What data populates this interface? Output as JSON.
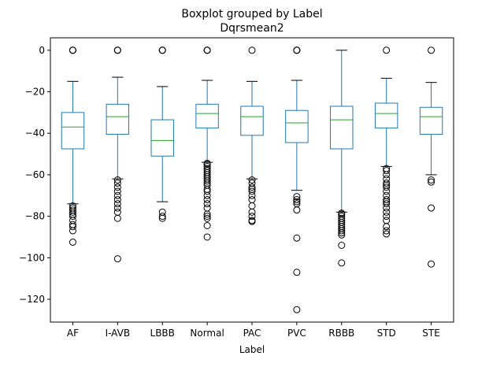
{
  "chart_data": {
    "type": "boxplot",
    "title": "Boxplot grouped by Label",
    "subtitle": "Dqrsmean2",
    "xlabel": "Label",
    "ylabel": "",
    "ylim": [
      -131,
      6
    ],
    "yticks": [
      0,
      -20,
      -40,
      -60,
      -80,
      -100,
      -120
    ],
    "grid": false,
    "colors": {
      "box": "#1f77b4",
      "median": "#2ca02c",
      "whisker": "#000000",
      "flier": "#000000"
    },
    "categories": [
      "AF",
      "I-AVB",
      "LBBB",
      "Normal",
      "PAC",
      "PVC",
      "RBBB",
      "STD",
      "STE"
    ],
    "boxes": [
      {
        "label": "AF",
        "whislo": -74,
        "q1": -47.5,
        "med": -37,
        "q3": -30,
        "whishi": -15,
        "fliers": [
          0,
          0,
          0,
          -75,
          -76,
          -77,
          -78,
          -79,
          -80,
          -82,
          -84,
          -85,
          -87,
          -92.5
        ]
      },
      {
        "label": "I-AVB",
        "whislo": -62,
        "q1": -40.5,
        "med": -32,
        "q3": -26,
        "whishi": -13,
        "fliers": [
          0,
          0,
          0,
          -62.5,
          -64,
          -66,
          -68,
          -70,
          -72,
          -74,
          -76,
          -78,
          -81,
          -100.5
        ]
      },
      {
        "label": "LBBB",
        "whislo": -73,
        "q1": -51,
        "med": -43.5,
        "q3": -33.5,
        "whishi": -17.5,
        "fliers": [
          0,
          0,
          0,
          -78,
          -80,
          -81
        ]
      },
      {
        "label": "Normal",
        "whislo": -54,
        "q1": -37.5,
        "med": -30.5,
        "q3": -26,
        "whishi": -14.5,
        "fliers": [
          0,
          0,
          0,
          -54.5,
          -55,
          -56,
          -57,
          -58,
          -59,
          -60,
          -61,
          -62,
          -63,
          -64,
          -65,
          -67,
          -68,
          -70,
          -72,
          -74,
          -76,
          -79,
          -80,
          -81,
          -84.5,
          -90
        ]
      },
      {
        "label": "PAC",
        "whislo": -62,
        "q1": -41,
        "med": -32,
        "q3": -27,
        "whishi": -15,
        "fliers": [
          0,
          -62.5,
          -64,
          -66,
          -67,
          -68,
          -70,
          -72,
          -75,
          -78,
          -80,
          -82,
          -82.5
        ]
      },
      {
        "label": "PVC",
        "whislo": -67.5,
        "q1": -44.5,
        "med": -35,
        "q3": -29,
        "whishi": -14.5,
        "fliers": [
          0,
          0,
          0,
          -70.5,
          -72,
          -73,
          -74,
          -77,
          -90.5,
          -107,
          -125
        ]
      },
      {
        "label": "RBBB",
        "whislo": -78,
        "q1": -47.5,
        "med": -33.5,
        "q3": -27,
        "whishi": 0,
        "fliers": [
          -78.5,
          -79,
          -80,
          -81,
          -82,
          -83,
          -84,
          -85,
          -86,
          -87,
          -88,
          -89,
          -94,
          -102.5
        ]
      },
      {
        "label": "STD",
        "whislo": -56,
        "q1": -37.5,
        "med": -30.5,
        "q3": -25.5,
        "whishi": -13.5,
        "fliers": [
          0,
          -57,
          -58,
          -60,
          -62,
          -64,
          -65,
          -66,
          -68,
          -70,
          -72,
          -73,
          -74,
          -76,
          -78,
          -80,
          -82,
          -85,
          -87,
          -88.5
        ]
      },
      {
        "label": "STE",
        "whislo": -60,
        "q1": -40.5,
        "med": -32,
        "q3": -27.5,
        "whishi": -15.5,
        "fliers": [
          0,
          -62.5,
          -63.5,
          -76,
          -103
        ]
      }
    ]
  }
}
